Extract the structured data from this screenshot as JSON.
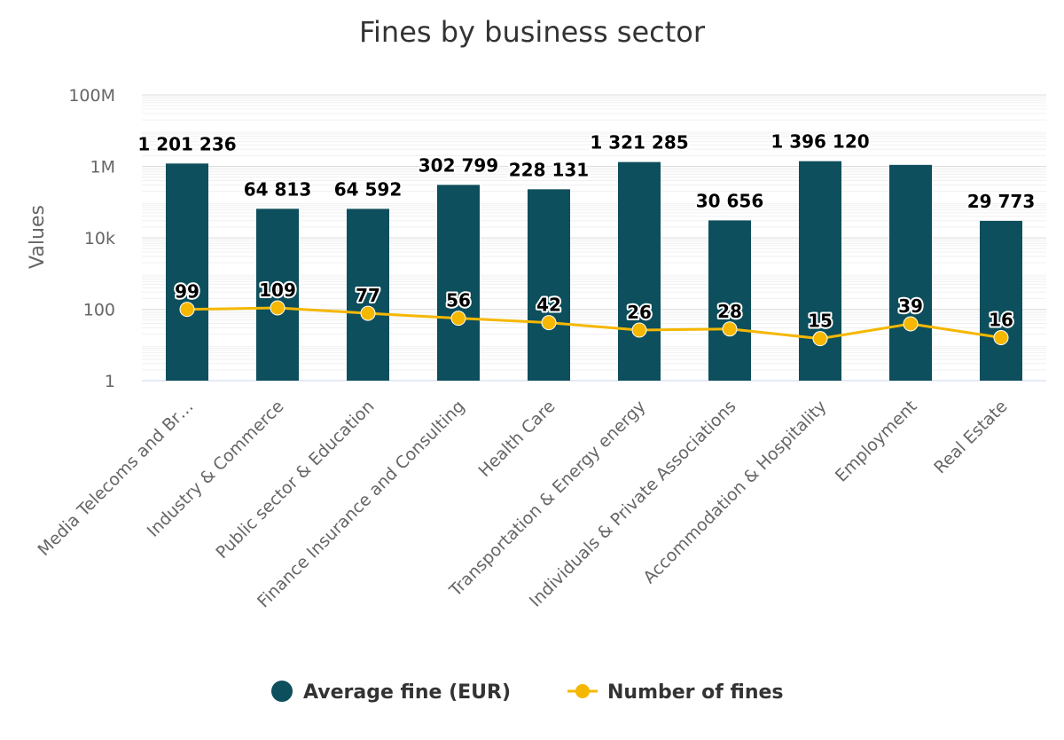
{
  "chart_data": {
    "type": "bar",
    "title": "Fines by business sector",
    "ylabel": "Values",
    "xlabel": "",
    "yscale": "log",
    "ylim": [
      1,
      100000000
    ],
    "yticks": [
      {
        "value": 1,
        "label": "1"
      },
      {
        "value": 100,
        "label": "100"
      },
      {
        "value": 10000,
        "label": "10k"
      },
      {
        "value": 1000000,
        "label": "1M"
      },
      {
        "value": 100000000,
        "label": "100M"
      }
    ],
    "grid": true,
    "legend_position": "bottom",
    "categories": [
      "Media Telecoms and Br…",
      "Industry & Commerce",
      "Public sector & Education",
      "Finance Insurance and Consulting",
      "Health Care",
      "Transportation & Energy energy",
      "Individuals & Private Associations",
      "Accommodation & Hospitality",
      "Employment",
      "Real Estate"
    ],
    "series": [
      {
        "name": "Average fine (EUR)",
        "type": "bar",
        "color": "#0d4f5c",
        "values": [
          1201236,
          64813,
          64592,
          302799,
          228131,
          1321285,
          30656,
          1396120,
          1100000,
          29773
        ],
        "labels": [
          "1 201 236",
          "64 813",
          "64 592",
          "302 799",
          "228 131",
          "1 321 285",
          "30 656",
          "1 396 120",
          "",
          "29 773"
        ]
      },
      {
        "name": "Number of fines",
        "type": "line",
        "color": "#f5b700",
        "values": [
          99,
          109,
          77,
          56,
          42,
          26,
          28,
          15,
          39,
          16
        ],
        "labels": [
          "99",
          "109",
          "77",
          "56",
          "42",
          "26",
          "28",
          "15",
          "39",
          "16"
        ]
      }
    ]
  }
}
